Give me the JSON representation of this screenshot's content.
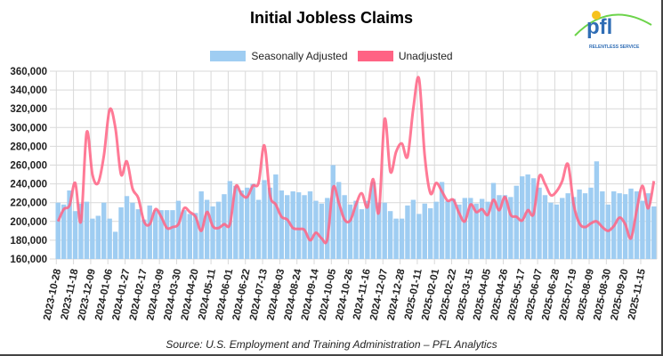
{
  "chart_data": {
    "type": "bar+line",
    "title": "Initial Jobless Claims",
    "source": "Source: U.S. Employment and Training Administration – PFL Analytics",
    "ylim": [
      160000,
      360000
    ],
    "y_ticks": [
      "160,000",
      "180,000",
      "200,000",
      "220,000",
      "240,000",
      "260,000",
      "280,000",
      "300,000",
      "320,000",
      "340,000",
      "360,000"
    ],
    "y_tick_values": [
      160000,
      180000,
      200000,
      220000,
      240000,
      260000,
      280000,
      300000,
      320000,
      340000,
      360000
    ],
    "grid": true,
    "legend": "top",
    "x_tick_every": 3,
    "x_tick_labels": [
      "2023-10-28",
      "2023-11-18",
      "2023-12-09",
      "2024-01-06",
      "2024-01-27",
      "2024-02-17",
      "2024-03-09",
      "2024-03-30",
      "2024-04-20",
      "2024-05-11",
      "2024-06-01",
      "2024-06-22",
      "2024-07-13",
      "2024-08-03",
      "2024-08-24",
      "2024-09-14",
      "2024-10-05",
      "2024-10-26",
      "2024-11-16",
      "2024-12-07",
      "2024-12-28",
      "2025-01-11",
      "2025-02-01",
      "2025-02-22",
      "2025-03-15",
      "2025-04-05",
      "2025-04-26",
      "2025-05-17",
      "2025-06-07",
      "2025-06-28",
      "2025-07-19",
      "2025-08-09",
      "2025-08-30",
      "2025-09-20",
      "2025-11-15"
    ],
    "series": [
      {
        "name": "Seasonally Adjusted",
        "kind": "bar",
        "color": "#9fcdf2",
        "values": [
          220000,
          218000,
          233000,
          211000,
          219000,
          221000,
          203000,
          206000,
          220000,
          203000,
          189000,
          215000,
          227000,
          220000,
          213000,
          202000,
          217000,
          212000,
          212000,
          212000,
          212000,
          222000,
          212000,
          208000,
          209000,
          232000,
          223000,
          216000,
          221000,
          229000,
          243000,
          238000,
          233000,
          236000,
          240000,
          223000,
          244000,
          236000,
          250000,
          233000,
          228000,
          232000,
          231000,
          228000,
          232000,
          222000,
          219000,
          225000,
          260000,
          242000,
          228000,
          218000,
          222000,
          213000,
          222000,
          242000,
          220000,
          220000,
          211000,
          203000,
          203000,
          217000,
          223000,
          208000,
          219000,
          214000,
          221000,
          242000,
          222000,
          224000,
          218000,
          225000,
          225000,
          219000,
          224000,
          221000,
          241000,
          228000,
          228000,
          226000,
          238000,
          248000,
          250000,
          246000,
          236000,
          228000,
          220000,
          218000,
          225000,
          230000,
          226000,
          234000,
          230000,
          236000,
          264000,
          232000,
          218000,
          232000,
          230000,
          229000,
          235000,
          232000,
          222000,
          230000,
          216000
        ]
      },
      {
        "name": "Unadjusted",
        "kind": "line",
        "color": "#ff6384",
        "values": [
          200000,
          213000,
          217000,
          241000,
          200000,
          295000,
          250000,
          241000,
          270000,
          319000,
          300000,
          250000,
          264000,
          235000,
          225000,
          200000,
          197000,
          213000,
          205000,
          193000,
          194000,
          197000,
          214000,
          210000,
          205000,
          190000,
          210000,
          195000,
          193000,
          197000,
          197000,
          237000,
          229000,
          226000,
          238000,
          241000,
          281000,
          228000,
          218000,
          205000,
          202000,
          193000,
          192000,
          191000,
          180000,
          188000,
          182000,
          181000,
          236000,
          220000,
          202000,
          201000,
          218000,
          230000,
          215000,
          245000,
          210000,
          309000,
          253000,
          274000,
          283000,
          269000,
          320000,
          352000,
          270000,
          230000,
          241000,
          232000,
          222000,
          223000,
          209000,
          200000,
          218000,
          210000,
          213000,
          207000,
          223000,
          212000,
          226000,
          207000,
          205000,
          201000,
          212000,
          208000,
          248000,
          240000,
          228000,
          232000,
          243000,
          261000,
          218000,
          198000,
          194000,
          198000,
          200000,
          194000,
          190000,
          195000,
          204000,
          197000,
          182000,
          212000,
          238000,
          214000,
          243000
        ]
      }
    ]
  },
  "logo": {
    "text": "pfl",
    "tagline": "RELENTLESS SERVICE"
  }
}
